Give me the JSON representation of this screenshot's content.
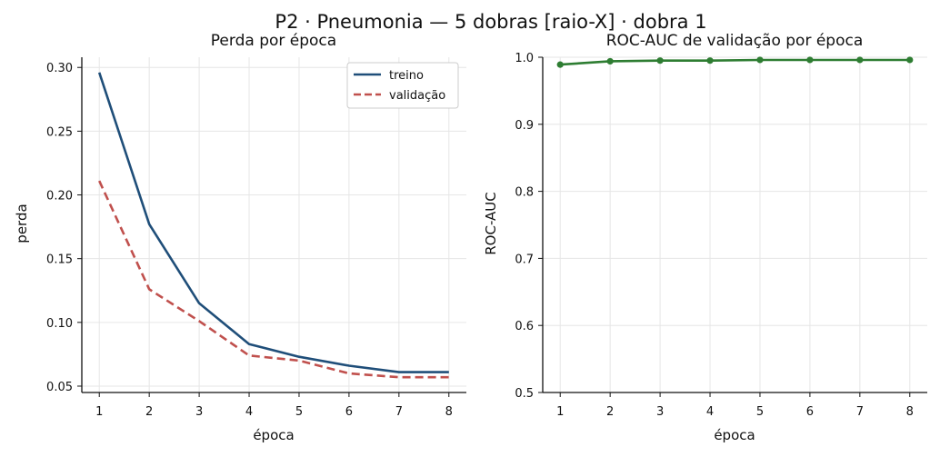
{
  "figure": {
    "suptitle": "P2 · Pneumonia — 5 dobras [raio-X] · dobra 1"
  },
  "chart_data": [
    {
      "type": "line",
      "title": "Perda por época",
      "xlabel": "época",
      "ylabel": "perda",
      "x": [
        1,
        2,
        3,
        4,
        5,
        6,
        7,
        8
      ],
      "xticks": [
        "1",
        "2",
        "3",
        "4",
        "5",
        "6",
        "7",
        "8"
      ],
      "xlim": [
        0.65,
        8.35
      ],
      "ylim": [
        0.045,
        0.308
      ],
      "yticks": [
        "0.05",
        "0.10",
        "0.15",
        "0.20",
        "0.25",
        "0.30"
      ],
      "ytick_values": [
        0.05,
        0.1,
        0.15,
        0.2,
        0.25,
        0.3
      ],
      "grid": true,
      "legend": "top-right",
      "series": [
        {
          "name": "treino",
          "color": "#1f4e79",
          "style": "solid",
          "values": [
            0.296,
            0.177,
            0.115,
            0.083,
            0.073,
            0.066,
            0.061,
            0.061
          ]
        },
        {
          "name": "validação",
          "color": "#c0504d",
          "style": "dashed",
          "values": [
            0.211,
            0.126,
            0.101,
            0.074,
            0.07,
            0.06,
            0.057,
            0.057
          ]
        }
      ]
    },
    {
      "type": "line",
      "title": "ROC-AUC de validação por época",
      "xlabel": "época",
      "ylabel": "ROC-AUC",
      "x": [
        1,
        2,
        3,
        4,
        5,
        6,
        7,
        8
      ],
      "xticks": [
        "1",
        "2",
        "3",
        "4",
        "5",
        "6",
        "7",
        "8"
      ],
      "xlim": [
        0.65,
        8.35
      ],
      "ylim": [
        0.5,
        1.0
      ],
      "yticks": [
        "0.5",
        "0.6",
        "0.7",
        "0.8",
        "0.9",
        "1.0"
      ],
      "ytick_values": [
        0.5,
        0.6,
        0.7,
        0.8,
        0.9,
        1.0
      ],
      "grid": true,
      "series": [
        {
          "color": "#2e7d32",
          "style": "solid-markers",
          "values": [
            0.989,
            0.994,
            0.995,
            0.995,
            0.996,
            0.996,
            0.996,
            0.996
          ]
        }
      ]
    }
  ]
}
